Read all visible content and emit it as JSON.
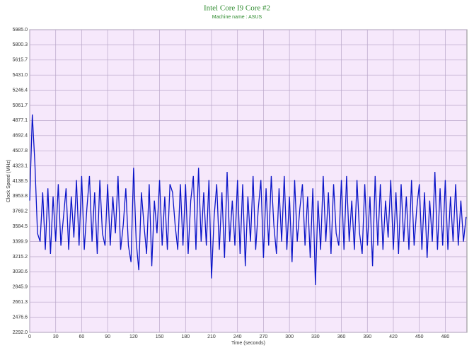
{
  "chart_data": {
    "type": "line",
    "title": "Intel Core I9 Core #2",
    "subtitle": "Machine name : ASUS",
    "x_label": "Time (seconds)",
    "y_label": "Clock Speed (MHz)",
    "xlim": [
      0,
      505
    ],
    "xticks": [
      0,
      30,
      60,
      90,
      120,
      150,
      180,
      210,
      240,
      270,
      300,
      330,
      360,
      390,
      420,
      450,
      480
    ],
    "ylim": [
      2292.0,
      5985.0
    ],
    "yticks": [
      {
        "value": 2292,
        "label": "2292.0"
      },
      2476.6,
      2661.3,
      2845.9,
      3030.6,
      3215.2,
      3399.9,
      3584.5,
      3769.2,
      3953.8,
      4138.5,
      4323.1,
      4507.8,
      4692.4,
      4877.1,
      5061.7,
      5246.4,
      {
        "value": 5431,
        "label": "5431.0"
      },
      5615.7,
      5800.3,
      {
        "value": 5985,
        "label": "5985.0"
      }
    ],
    "grid": true,
    "series": [
      {
        "name": "Core #2",
        "color": "#0a14c8",
        "x": [
          0,
          3,
          6,
          9,
          12,
          15,
          18,
          21,
          24,
          27,
          30,
          33,
          36,
          39,
          42,
          45,
          48,
          51,
          54,
          57,
          60,
          63,
          66,
          69,
          72,
          75,
          78,
          81,
          84,
          87,
          90,
          93,
          96,
          99,
          102,
          105,
          108,
          111,
          114,
          117,
          120,
          123,
          126,
          129,
          132,
          135,
          138,
          141,
          144,
          147,
          150,
          153,
          156,
          159,
          162,
          165,
          168,
          171,
          174,
          177,
          180,
          183,
          186,
          189,
          192,
          195,
          198,
          201,
          204,
          207,
          210,
          213,
          216,
          219,
          222,
          225,
          228,
          231,
          234,
          237,
          240,
          243,
          246,
          249,
          252,
          255,
          258,
          261,
          264,
          267,
          270,
          273,
          276,
          279,
          282,
          285,
          288,
          291,
          294,
          297,
          300,
          303,
          306,
          309,
          312,
          315,
          318,
          321,
          324,
          327,
          330,
          333,
          336,
          339,
          342,
          345,
          348,
          351,
          354,
          357,
          360,
          363,
          366,
          369,
          372,
          375,
          378,
          381,
          384,
          387,
          390,
          393,
          396,
          399,
          402,
          405,
          408,
          411,
          414,
          417,
          420,
          423,
          426,
          429,
          432,
          435,
          438,
          441,
          444,
          447,
          450,
          453,
          456,
          459,
          462,
          465,
          468,
          471,
          474,
          477,
          480,
          483,
          486,
          489,
          492,
          495,
          498,
          501,
          504
        ],
        "values": [
          3900,
          4950,
          4350,
          3500,
          3400,
          4000,
          3300,
          4050,
          3250,
          3950,
          3400,
          4100,
          3350,
          3700,
          4050,
          3300,
          3950,
          3450,
          4150,
          3350,
          4200,
          3300,
          3800,
          4200,
          3400,
          4000,
          3250,
          4150,
          3500,
          3350,
          4100,
          3350,
          3950,
          3500,
          4200,
          3300,
          3600,
          4050,
          3350,
          3150,
          4300,
          3400,
          3050,
          4000,
          3600,
          3250,
          4100,
          3100,
          3900,
          3500,
          4150,
          3350,
          3950,
          3300,
          4100,
          4000,
          3600,
          3300,
          4100,
          3350,
          4100,
          3250,
          3900,
          4200,
          3300,
          4300,
          3400,
          4000,
          3350,
          4150,
          2950,
          3700,
          4100,
          3300,
          4000,
          3200,
          4250,
          3400,
          3900,
          3350,
          4150,
          3250,
          4100,
          3100,
          3950,
          3400,
          4200,
          3300,
          3800,
          4150,
          3200,
          4050,
          3350,
          4200,
          3600,
          3250,
          4050,
          3400,
          4200,
          3300,
          3950,
          3150,
          4150,
          3400,
          3800,
          4100,
          3350,
          3950,
          3200,
          4050,
          2870,
          3900,
          3300,
          4200,
          3400,
          4000,
          3250,
          4100,
          3500,
          3350,
          4150,
          3300,
          4200,
          3400,
          3900,
          3300,
          4150,
          3500,
          3250,
          4100,
          3350,
          3950,
          3100,
          4200,
          3350,
          4100,
          3300,
          3900,
          3450,
          4150,
          3300,
          4000,
          3250,
          4100,
          3400,
          3950,
          3300,
          4150,
          3350,
          3800,
          4100,
          3300,
          4000,
          3200,
          3900,
          3400,
          4250,
          3300,
          4050,
          3350,
          4150,
          3300,
          3950,
          3400,
          4100,
          3350,
          3900,
          3400,
          3700
        ]
      }
    ]
  }
}
